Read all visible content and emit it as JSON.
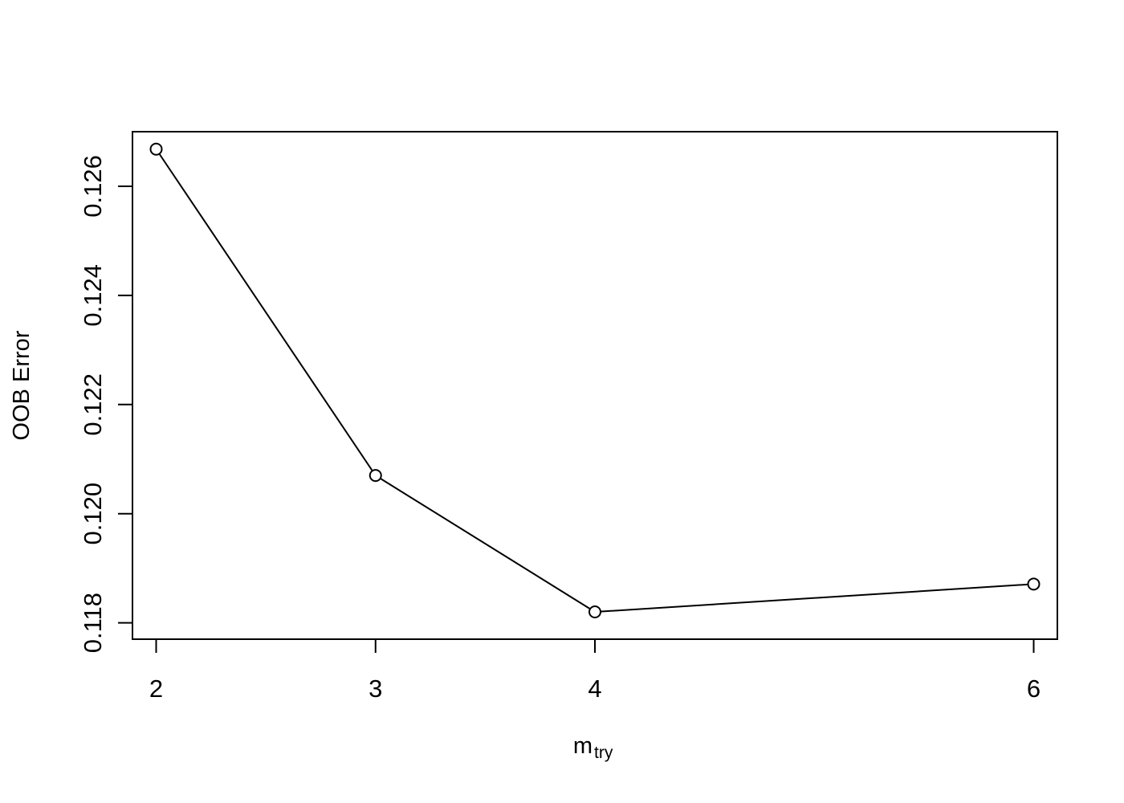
{
  "chart_data": {
    "type": "line",
    "title": "",
    "xlabel": "m",
    "xlabel_subscript": "try",
    "ylabel": "OOB Error",
    "categories": [
      "2",
      "3",
      "4",
      "6"
    ],
    "series": [
      {
        "name": "OOB Error",
        "marker": "open-circle",
        "values": [
          0.12668,
          0.1207,
          0.1182,
          0.11871
        ]
      }
    ],
    "ylim": [
      0.1177,
      0.127
    ],
    "yticks": [
      0.118,
      0.12,
      0.122,
      0.124,
      0.126
    ],
    "ytick_labels": [
      "0.118",
      "0.120",
      "0.122",
      "0.124",
      "0.126"
    ],
    "grid": false,
    "legend": "none",
    "line_color": "#000000"
  }
}
